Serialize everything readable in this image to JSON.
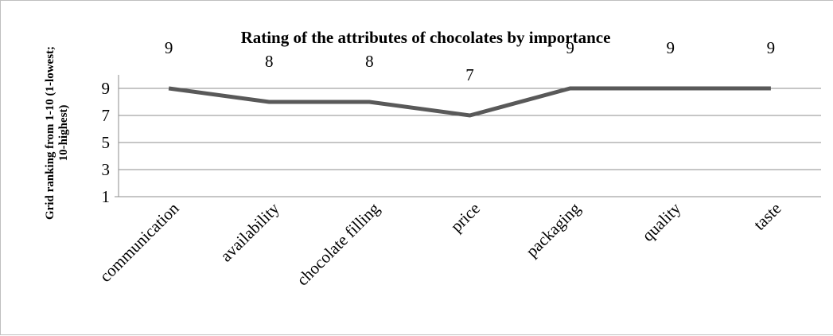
{
  "chart_data": {
    "type": "line",
    "title": "Rating of the attributes of chocolates by importance",
    "ylabel": "Grid ranking from 1-10 (1-lowest; 10-highest)",
    "ylabel_lines": [
      "Grid ranking from 1-10 (1-lowest;",
      "10-highest)"
    ],
    "xlabel": "",
    "categories": [
      "communication",
      "availability",
      "chocolate filling",
      "price",
      "packaging",
      "quality",
      "taste"
    ],
    "series": [
      {
        "values": [
          9,
          8,
          8,
          7,
          9,
          9,
          9
        ],
        "color": "#595959"
      }
    ],
    "y_ticks": [
      1,
      3,
      5,
      7,
      9
    ],
    "ylim": [
      1,
      10
    ],
    "grid": true,
    "legend": "none",
    "data_labels": true
  }
}
